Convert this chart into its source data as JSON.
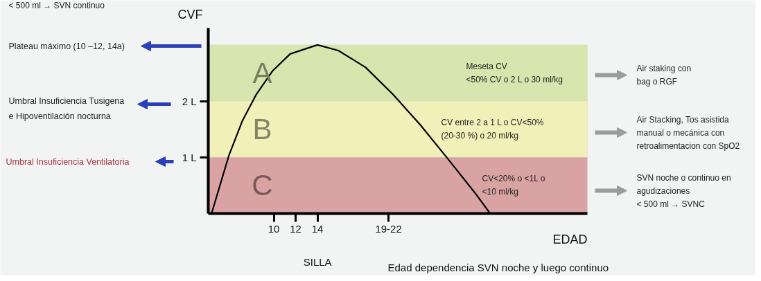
{
  "chart_data": {
    "type": "line",
    "xlabel": "EDAD",
    "ylabel": "CVF",
    "x": [
      4.3,
      5.9,
      7.1,
      8.4,
      9.9,
      11.5,
      14,
      15.9,
      18.4,
      20.9,
      23.4,
      25.9,
      28.4,
      29.8
    ],
    "series": [
      {
        "color": "#000000",
        "values": [
          0,
          1.04,
          1.64,
          2.12,
          2.54,
          2.84,
          3.0,
          2.9,
          2.6,
          2.12,
          1.58,
          0.98,
          0.37,
          0
        ]
      }
    ],
    "xlim": [
      4,
      38.7
    ],
    "ylim": [
      0,
      3.3
    ],
    "xticks": [
      10,
      12,
      14,
      {
        "value": 20.5,
        "label": "19-22"
      }
    ],
    "yticks": [
      {
        "value": 1,
        "label": "1 L"
      },
      {
        "value": 2,
        "label": "2 L"
      }
    ],
    "grid": false,
    "marker": "none",
    "line_style": "solid",
    "bands": [
      {
        "axis": "y",
        "from": 2,
        "to": 3,
        "label": "A",
        "color": "#d7e6ae"
      },
      {
        "axis": "y",
        "from": 1,
        "to": 2,
        "label": "B",
        "color": "#f1f0b9"
      },
      {
        "axis": "y",
        "from": 0,
        "to": 1,
        "label": "C",
        "color": "#d9a3a4"
      }
    ],
    "annotations": [
      "< 500 ml → SVN continuo",
      "Plateau máximo (10 –12, 14a)",
      "Umbral Insuficiencia Tusigena\ne Hipoventilación nocturna",
      "Umbral Insuficiencia Ventilatoria",
      "Meseta CV\n<50% CV o 2 L o 30 ml/kg",
      "CV  entre 2 a 1 L o CV<50%\n(20-30 %)  o 20 ml/kg",
      "CV<20%  o <1L o\n<10 ml/kg",
      "Air staking con\nbag o RGF",
      "Air Stacking, Tos asistida\nmanual o mecánica con\nretroalimentacion con SpO2",
      "SVN noche o continuo en\nagudizaciones\n< 500 ml → SVNC",
      "SILLA",
      "Edad dependencia SVN noche y luego continuo"
    ]
  }
}
